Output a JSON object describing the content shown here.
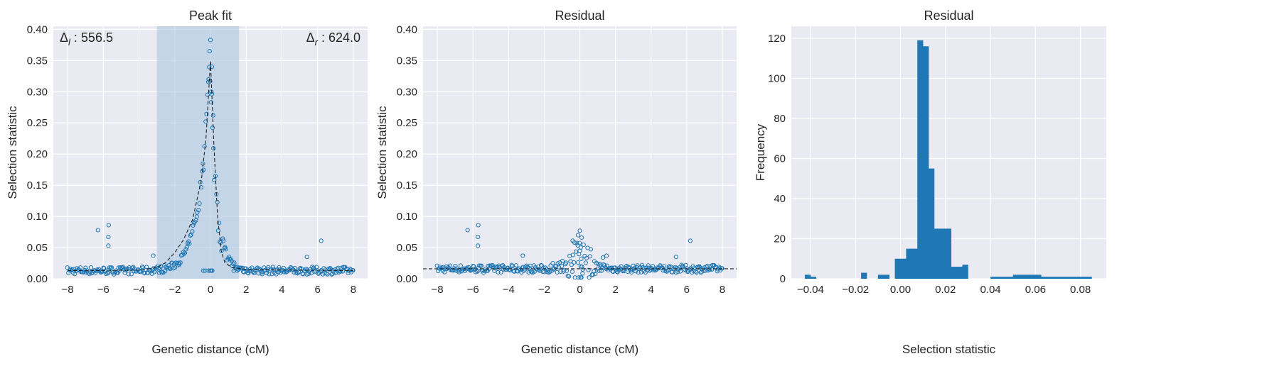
{
  "chart_data": [
    {
      "type": "scatter",
      "title": "Peak fit",
      "xlabel": "Genetic distance (cM)",
      "ylabel": "Selection statistic",
      "xlim": [
        -8.8,
        8.8
      ],
      "ylim": [
        0,
        0.405
      ],
      "xticks": [
        -8,
        -6,
        -4,
        -2,
        0,
        2,
        4,
        6,
        8
      ],
      "xtick_labels": [
        "−8",
        "−6",
        "−4",
        "−2",
        "0",
        "2",
        "4",
        "6",
        "8"
      ],
      "yticks": [
        0,
        0.05,
        0.1,
        0.15,
        0.2,
        0.25,
        0.3,
        0.35,
        0.4
      ],
      "ytick_labels": [
        "0.00",
        "0.05",
        "0.10",
        "0.15",
        "0.20",
        "0.25",
        "0.30",
        "0.35",
        "0.40"
      ],
      "shaded_region": [
        -3.0,
        1.6
      ],
      "annotations": [
        {
          "text": "Δ",
          "sub": "l",
          "value": " : 556.5",
          "anchor": "top-left"
        },
        {
          "text": "Δ",
          "sub": "r",
          "value": " : 624.0",
          "anchor": "top-right"
        }
      ],
      "fit_line": {
        "style": "dashed",
        "points": [
          [
            -8,
            0.013
          ],
          [
            -5,
            0.0135
          ],
          [
            -4,
            0.014
          ],
          [
            -3,
            0.018
          ],
          [
            -2.5,
            0.026
          ],
          [
            -2,
            0.042
          ],
          [
            -1.5,
            0.063
          ],
          [
            -1,
            0.095
          ],
          [
            -0.5,
            0.16
          ],
          [
            -0.25,
            0.225
          ],
          [
            0,
            0.35
          ],
          [
            0.2,
            0.21
          ],
          [
            0.4,
            0.1
          ],
          [
            0.6,
            0.045
          ],
          [
            0.8,
            0.026
          ],
          [
            1.2,
            0.018
          ],
          [
            2,
            0.015
          ],
          [
            4,
            0.014
          ],
          [
            8,
            0.013
          ]
        ]
      },
      "points_x": [],
      "points_y": []
    },
    {
      "type": "scatter",
      "title": "Residual",
      "xlabel": "Genetic distance (cM)",
      "ylabel": "Selection statistic",
      "xlim": [
        -8.8,
        8.8
      ],
      "ylim": [
        0,
        0.405
      ],
      "xticks": [
        -8,
        -6,
        -4,
        -2,
        0,
        2,
        4,
        6,
        8
      ],
      "xtick_labels": [
        "−8",
        "−6",
        "−4",
        "−2",
        "0",
        "2",
        "4",
        "6",
        "8"
      ],
      "yticks": [
        0,
        0.05,
        0.1,
        0.15,
        0.2,
        0.25,
        0.3,
        0.35,
        0.4
      ],
      "ytick_labels": [
        "0.00",
        "0.05",
        "0.10",
        "0.15",
        "0.20",
        "0.25",
        "0.30",
        "0.35",
        "0.40"
      ],
      "hline": {
        "y": 0.016,
        "style": "dashed"
      },
      "points_x": [],
      "points_y": []
    },
    {
      "type": "bar",
      "title": "Residual",
      "xlabel": "Selection statistic",
      "ylabel": "Frequency",
      "xlim": [
        -0.0485,
        0.0915
      ],
      "ylim": [
        0,
        126
      ],
      "xticks": [
        -0.04,
        -0.02,
        0.0,
        0.02,
        0.04,
        0.06,
        0.08
      ],
      "xtick_labels": [
        "−0.04",
        "−0.02",
        "0.00",
        "0.02",
        "0.04",
        "0.06",
        "0.08"
      ],
      "yticks": [
        0,
        20,
        40,
        60,
        80,
        100,
        120
      ],
      "ytick_labels": [
        "0",
        "20",
        "40",
        "60",
        "80",
        "100",
        "120"
      ],
      "bin_edges": [
        -0.0425,
        -0.04,
        -0.0375,
        -0.035,
        -0.0325,
        -0.03,
        -0.0275,
        -0.025,
        -0.0225,
        -0.02,
        -0.0175,
        -0.015,
        -0.0125,
        -0.01,
        -0.0075,
        -0.005,
        -0.0025,
        0.0,
        0.0025,
        0.005,
        0.0075,
        0.01,
        0.0125,
        0.015,
        0.0175,
        0.02,
        0.0225,
        0.025,
        0.0275,
        0.03,
        0.0325,
        0.035,
        0.0375,
        0.04,
        0.0425,
        0.045,
        0.0475,
        0.05,
        0.0525,
        0.055,
        0.0575,
        0.06,
        0.0625,
        0.065,
        0.0675,
        0.07,
        0.0725,
        0.075,
        0.0775,
        0.08,
        0.0825,
        0.085
      ],
      "values": [
        2,
        1,
        0,
        0,
        0,
        0,
        0,
        0,
        0,
        0,
        3,
        0,
        0,
        2,
        2,
        0,
        10,
        10,
        15,
        15,
        119,
        116,
        55,
        25,
        25,
        25,
        6,
        6,
        7,
        0,
        0,
        0,
        0,
        1,
        1,
        1,
        1,
        2,
        2,
        2,
        2,
        2,
        1,
        1,
        1,
        1,
        1,
        1,
        1,
        1,
        1
      ],
      "color": "#1f77b4"
    }
  ],
  "style": {
    "axes_bg": "#eaeaf2",
    "grid": "#ffffff",
    "marker_color": "#1f77b4",
    "span_color": "#aec7e8"
  }
}
